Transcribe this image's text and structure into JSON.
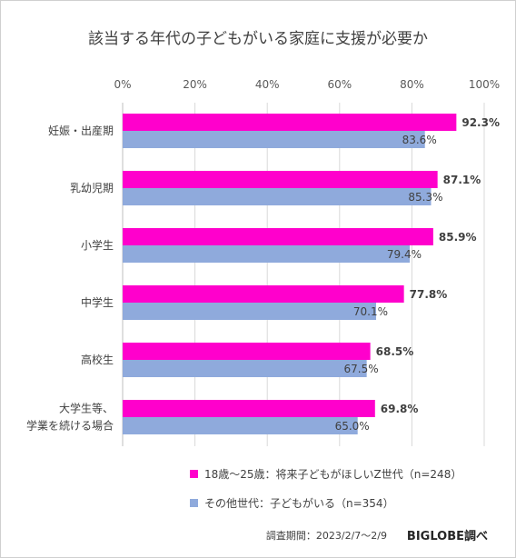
{
  "chart_data": {
    "type": "bar",
    "orientation": "horizontal",
    "title": "該当する年代の子どもがいる家庭に支援が必要か",
    "xlim": [
      0,
      100
    ],
    "ticks": [
      "0%",
      "20%",
      "40%",
      "60%",
      "80%",
      "100%"
    ],
    "tick_values": [
      0,
      20,
      40,
      60,
      80,
      100
    ],
    "grid": true,
    "legend_position": "bottom",
    "categories": [
      [
        "妊娠・出産期"
      ],
      [
        "乳幼児期"
      ],
      [
        "小学生"
      ],
      [
        "中学生"
      ],
      [
        "高校生"
      ],
      [
        "大学生等、",
        "学業を続ける場合"
      ]
    ],
    "series": [
      {
        "name": "18歳〜25歳：将来子どもがほしいZ世代（n=248）",
        "color": "#FF00CC",
        "values": [
          92.3,
          87.1,
          85.9,
          77.8,
          68.5,
          69.8
        ],
        "labels": [
          "92.3%",
          "87.1%",
          "85.9%",
          "77.8%",
          "68.5%",
          "69.8%"
        ]
      },
      {
        "name": "その他世代：子どもがいる（n=354）",
        "color": "#8FAADC",
        "values": [
          83.6,
          85.3,
          79.4,
          70.1,
          67.5,
          65.0
        ],
        "labels": [
          "83.6%",
          "85.3%",
          "79.4%",
          "70.1%",
          "67.5%",
          "65.0%"
        ]
      }
    ]
  },
  "footer": {
    "survey_period": "調査期間：2023/2/7〜2/9",
    "source": "BIGLOBE調べ"
  }
}
